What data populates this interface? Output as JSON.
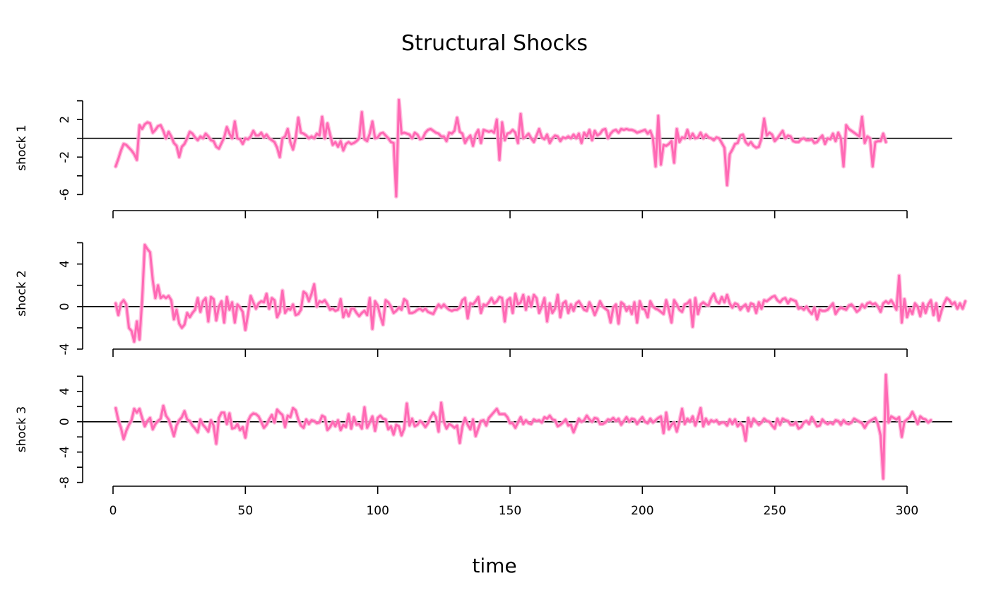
{
  "chart_data": {
    "type": "line",
    "title": "Structural Shocks",
    "xlabel": "time",
    "xlim": [
      0,
      305
    ],
    "x_ticks": [
      0,
      50,
      100,
      150,
      200,
      250,
      300
    ],
    "series_color": "#FF69B4",
    "band_color": "#FFB3DA",
    "panels": [
      {
        "ylabel": "shock 1",
        "ylim": [
          -6.2,
          4.2
        ],
        "y_ticks": [
          "2",
          "-2",
          "-6"
        ],
        "y_tick_values": [
          2,
          -2,
          -6
        ],
        "y_minor_ticks": [
          4,
          0,
          -4
        ],
        "zero_line": 0,
        "values": [
          -3.0,
          -2.2,
          -1.3,
          -0.6,
          -0.7,
          -1.0,
          -1.3,
          -1.7,
          -2.3,
          1.4,
          1.0,
          1.5,
          1.7,
          1.6,
          0.6,
          0.9,
          1.3,
          1.4,
          0.8,
          0.0,
          0.7,
          0.2,
          -0.5,
          -0.8,
          -2.0,
          -0.9,
          -0.6,
          0.0,
          0.7,
          0.5,
          0.1,
          -0.2,
          0.2,
          0.0,
          0.5,
          0.2,
          -0.2,
          -0.3,
          -0.9,
          -1.1,
          -0.5,
          0.1,
          1.2,
          0.5,
          0.0,
          1.8,
          0.0,
          -0.1,
          -0.6,
          0.0,
          -0.1,
          0.2,
          0.8,
          0.3,
          0.3,
          0.6,
          0.1,
          0.4,
          0.0,
          -0.2,
          -0.4,
          -1.0,
          -2.0,
          0.0,
          0.2,
          1.0,
          -0.4,
          -1.2,
          0.0,
          2.2,
          0.6,
          0.5,
          0.3,
          0.0,
          0.2,
          0.0,
          0.5,
          0.3,
          2.3,
          0.0,
          1.6,
          0.4,
          -0.7,
          -0.4,
          -0.9,
          -0.3,
          -1.3,
          -0.6,
          -0.4,
          -0.6,
          -0.5,
          -0.3,
          0.0,
          2.8,
          -0.1,
          -0.3,
          0.5,
          1.8,
          0.0,
          0.1,
          0.5,
          0.6,
          0.3,
          0.0,
          -0.4,
          -0.5,
          -6.2,
          4.1,
          0.5,
          0.6,
          0.5,
          0.4,
          0.0,
          0.6,
          0.4,
          -0.1,
          0.0,
          0.6,
          0.9,
          1.0,
          0.8,
          0.6,
          0.5,
          0.2,
          0.2,
          -0.3,
          0.6,
          0.5,
          0.8,
          2.2,
          0.7,
          0.5,
          -0.5,
          0.0,
          0.3,
          -0.8,
          0.4,
          0.9,
          -0.5,
          0.9,
          0.8,
          0.7,
          0.8,
          0.6,
          2.0,
          -2.3,
          1.7,
          -0.2,
          0.5,
          0.6,
          0.9,
          0.6,
          -0.5,
          2.6,
          0.0,
          0.2,
          0.5,
          0.0,
          -0.4,
          0.3,
          1.0,
          0.1,
          -0.1,
          0.4,
          -0.5,
          0.0,
          0.3,
          0.2,
          -0.3,
          0.1,
          0.0,
          0.2,
          0.0,
          0.4,
          0.0,
          0.5,
          -0.5,
          0.6,
          0.2,
          0.9,
          -0.2,
          0.8,
          0.3,
          0.5,
          0.9,
          1.0,
          0.0,
          0.5,
          0.8,
          0.9,
          0.6,
          1.0,
          0.9,
          1.0,
          0.9,
          0.9,
          0.8,
          0.6,
          0.7,
          0.8,
          0.9,
          0.5,
          0.8,
          0.0,
          -3.0,
          2.4,
          -2.8,
          -0.7,
          -0.8,
          -0.6,
          -0.3,
          -2.6,
          1.0,
          -0.4,
          0.1,
          0.0,
          0.9,
          0.0,
          0.5,
          0.0,
          0.1,
          0.6,
          0.0,
          0.4,
          0.1,
          0.0,
          -0.2,
          0.1,
          0.0,
          -0.5,
          -1.0,
          -5.0,
          -1.7,
          -1.2,
          -0.6,
          -0.5,
          0.3,
          0.4,
          -0.4,
          -0.7,
          -0.4,
          -0.8,
          -1.0,
          -0.9,
          0.0,
          2.1,
          0.3,
          0.6,
          0.4,
          -0.3,
          0.0,
          0.4,
          0.8,
          0.0,
          0.3,
          0.2,
          -0.3,
          -0.4,
          -0.4,
          -0.1,
          0.0,
          -0.2,
          -0.2,
          -0.1,
          -0.5,
          -0.4,
          0.0,
          0.3,
          -0.6,
          0.0,
          -0.1,
          0.5,
          -0.3,
          0.6,
          0.0,
          -3.0,
          1.4,
          1.0,
          0.8,
          0.6,
          0.4,
          0.2,
          2.3,
          -0.5,
          0.2,
          0.0,
          -3.0,
          -0.4,
          -0.3,
          -0.3,
          0.5,
          -0.4
        ]
      },
      {
        "ylabel": "shock 2",
        "ylim": [
          -4,
          6.5
        ],
        "y_ticks": [
          "4",
          "0",
          "-4"
        ],
        "y_tick_values": [
          4,
          0,
          -4
        ],
        "y_minor_ticks": [
          6,
          2,
          -2
        ],
        "zero_line": 0,
        "values": [
          0.3,
          -0.8,
          0.3,
          0.6,
          0.2,
          -2.0,
          -2.3,
          -3.3,
          -1.4,
          -3.1,
          0.6,
          5.8,
          5.4,
          5.1,
          2.5,
          0.8,
          2.0,
          0.8,
          1.0,
          0.8,
          1.0,
          0.6,
          -1.2,
          -0.3,
          -1.6,
          -2.0,
          -1.7,
          -0.6,
          -1.0,
          -0.6,
          -0.3,
          0.8,
          -0.5,
          0.5,
          0.8,
          -1.4,
          0.9,
          0.7,
          -1.3,
          0.0,
          0.5,
          -1.5,
          0.9,
          -0.3,
          0.4,
          -1.5,
          0.2,
          -0.1,
          -0.5,
          -2.2,
          -0.7,
          1.0,
          0.4,
          -0.2,
          0.3,
          0.5,
          0.4,
          1.2,
          -0.2,
          0.8,
          0.6,
          -1.0,
          -0.5,
          1.5,
          -0.6,
          -0.2,
          -0.3,
          0.2,
          -0.8,
          -0.7,
          -0.3,
          1.4,
          1.2,
          0.5,
          1.2,
          2.1,
          0.0,
          0.5,
          0.4,
          0.6,
          0.2,
          -0.3,
          -0.2,
          -0.4,
          -0.3,
          0.7,
          -1.0,
          -0.3,
          -0.9,
          -0.2,
          -0.2,
          -0.6,
          -0.9,
          -0.6,
          -0.4,
          -0.8,
          0.8,
          -2.1,
          0.5,
          0.1,
          -0.9,
          -1.7,
          0.6,
          0.4,
          0.0,
          -0.6,
          -0.4,
          -0.1,
          -0.3,
          0.7,
          0.5,
          -0.6,
          -0.6,
          -0.5,
          -0.3,
          -0.2,
          -0.4,
          -0.2,
          -0.5,
          -0.6,
          -0.7,
          -0.2,
          0.2,
          -0.1,
          0.2,
          -0.1,
          -0.3,
          -0.4,
          -0.3,
          -0.3,
          -0.1,
          0.6,
          0.8,
          -1.1,
          0.3,
          0.2,
          0.5,
          0.9,
          -0.6,
          0.2,
          0.1,
          0.4,
          0.8,
          0.3,
          0.5,
          0.9,
          0.8,
          -1.4,
          0.6,
          0.8,
          -0.6,
          1.2,
          0.2,
          0.4,
          1.1,
          -0.3,
          0.9,
          0.0,
          1.1,
          0.8,
          -0.6,
          0.0,
          0.8,
          -1.4,
          0.3,
          -0.6,
          -0.2,
          1.1,
          -1.0,
          0.3,
          0.5,
          -0.6,
          0.2,
          -0.4,
          0.3,
          0.5,
          0.1,
          -0.3,
          -0.4,
          0.4,
          -0.1,
          -0.8,
          -0.2,
          0.5,
          0.0,
          -0.2,
          -0.4,
          -1.5,
          -0.1,
          0.2,
          -1.6,
          0.4,
          0.2,
          -0.4,
          0.0,
          -0.7,
          0.4,
          -1.5,
          0.5,
          -0.2,
          -0.3,
          -1.0,
          0.5,
          0.0,
          -0.2,
          -0.3,
          -0.5,
          -0.7,
          0.6,
          -0.3,
          -1.5,
          0.6,
          0.2,
          -0.3,
          -0.5,
          0.2,
          0.3,
          0.6,
          -1.9,
          0.8,
          -0.7,
          0.2,
          0.4,
          0.2,
          0.1,
          0.8,
          1.2,
          0.5,
          0.3,
          0.9,
          0.4,
          1.1,
          0.3,
          -0.1,
          0.3,
          0.2,
          -0.3,
          0.0,
          0.2,
          -0.4,
          0.3,
          0.2,
          -0.6,
          0.4,
          -0.2,
          0.6,
          0.5,
          0.7,
          0.9,
          1.0,
          0.6,
          0.4,
          0.7,
          0.8,
          0.3,
          0.7,
          0.6,
          0.5,
          -0.2,
          -0.1,
          -0.3,
          0.0,
          -0.4,
          -0.7,
          -0.1,
          -1.2,
          -0.3,
          -0.4,
          -0.4,
          -0.3,
          0.0,
          0.3,
          -0.7,
          -0.3,
          -0.1,
          -0.2,
          -0.3,
          0.1,
          0.2,
          -0.1,
          -0.5,
          -0.3,
          0.2,
          -0.1,
          0.3,
          0.4,
          0.2,
          0.3,
          0.0,
          -0.5,
          0.3,
          0.5,
          0.3,
          0.6,
          0.2,
          -0.3,
          2.9,
          -1.5,
          0.7,
          -1.0,
          -0.2,
          -0.7,
          0.3,
          0.0,
          -0.9,
          0.3,
          -0.6,
          0.2,
          0.6,
          -0.8,
          0.3,
          -1.3,
          -0.4,
          0.3,
          0.8,
          0.6,
          0.2,
          0.4,
          -0.2,
          0.3,
          -0.2,
          0.5
        ]
      },
      {
        "ylabel": "shock 3",
        "ylim": [
          -8.5,
          6.5
        ],
        "y_ticks": [
          "4",
          "0",
          "-4",
          "-8"
        ],
        "y_tick_values": [
          4,
          0,
          -4,
          -8
        ],
        "y_minor_ticks": [
          6,
          2,
          -2,
          -6
        ],
        "zero_line": 0,
        "values": [
          1.8,
          0.2,
          -0.8,
          -2.3,
          -1.2,
          -0.4,
          0.2,
          1.7,
          1.2,
          1.7,
          0.5,
          -0.6,
          0.1,
          0.5,
          -1.0,
          -0.3,
          0.1,
          0.4,
          2.1,
          0.8,
          0.3,
          -0.7,
          -1.9,
          -0.5,
          0.2,
          0.6,
          1.4,
          0.3,
          0.1,
          -0.5,
          -0.9,
          -1.4,
          0.3,
          -0.4,
          -0.8,
          -1.3,
          0.2,
          -0.5,
          -2.9,
          0.5,
          1.2,
          1.2,
          -0.3,
          1.1,
          -0.9,
          -0.8,
          -0.3,
          -1.1,
          -0.7,
          -2.1,
          0.1,
          0.8,
          1.1,
          1.0,
          0.7,
          0.0,
          -0.8,
          -0.4,
          0.3,
          0.9,
          -0.1,
          1.6,
          1.2,
          0.9,
          -0.7,
          0.8,
          0.6,
          1.8,
          1.5,
          0.3,
          -0.5,
          -0.8,
          0.3,
          -0.3,
          0.2,
          0.1,
          -0.2,
          -0.1,
          0.8,
          0.6,
          -1.1,
          -0.7,
          0.0,
          -0.6,
          0.2,
          -1.1,
          -0.4,
          -0.7,
          1.0,
          -0.9,
          0.6,
          -0.4,
          -0.3,
          -0.9,
          1.9,
          -0.8,
          -0.1,
          0.7,
          -1.2,
          0.5,
          0.8,
          0.4,
          0.3,
          -1.0,
          -0.6,
          -1.7,
          -0.4,
          -0.6,
          -1.8,
          -0.9,
          2.4,
          -0.5,
          0.4,
          -0.6,
          -0.4,
          0.1,
          -0.2,
          -0.7,
          -0.2,
          0.6,
          1.2,
          0.6,
          -1.3,
          2.5,
          0.0,
          -0.9,
          -0.3,
          -0.5,
          -0.8,
          -0.5,
          -2.8,
          -0.6,
          0.5,
          -0.4,
          -1.0,
          0.3,
          -1.9,
          -0.9,
          0.1,
          0.2,
          -0.5,
          0.5,
          0.9,
          1.3,
          1.7,
          1.0,
          1.0,
          1.0,
          0.6,
          -0.2,
          -0.2,
          -0.8,
          -0.1,
          0.6,
          -0.3,
          0.2,
          -0.2,
          -0.3,
          0.3,
          0.1,
          0.2,
          -0.1,
          0.6,
          0.4,
          0.8,
          0.3,
          0.2,
          -0.6,
          -0.4,
          -0.1,
          0.3,
          -0.5,
          -0.4,
          -1.4,
          -0.5,
          0.4,
          0.0,
          0.2,
          0.8,
          0.3,
          0.0,
          0.5,
          0.4,
          -0.3,
          -0.3,
          -0.1,
          0.3,
          0.2,
          0.5,
          0.1,
          0.4,
          -0.4,
          0.1,
          0.6,
          0.0,
          0.4,
          0.3,
          -0.3,
          0.2,
          0.6,
          0.0,
          -0.2,
          0.4,
          -0.1,
          0.2,
          0.5,
          0.7,
          -1.5,
          1.2,
          -1.0,
          -0.4,
          -0.1,
          -1.3,
          0.0,
          1.7,
          -0.3,
          0.4,
          0.0,
          0.7,
          -0.5,
          0.5,
          1.8,
          -0.6,
          0.4,
          -0.3,
          0.2,
          0.0,
          0.2,
          -0.3,
          -0.1,
          -0.1,
          -0.5,
          0.3,
          -0.3,
          0.3,
          -0.6,
          -0.2,
          -0.6,
          -2.5,
          0.5,
          -0.6,
          0.4,
          0.0,
          -0.4,
          -0.1,
          0.4,
          0.1,
          0.0,
          -0.5,
          -0.9,
          0.4,
          -0.4,
          0.4,
          0.2,
          0.1,
          -0.4,
          -0.4,
          -0.1,
          -0.9,
          -0.7,
          -0.1,
          0.1,
          -0.3,
          0.6,
          0.0,
          -0.6,
          -0.5,
          0.3,
          -0.1,
          -0.3,
          -0.1,
          -0.3,
          0.2,
          0.1,
          -0.4,
          0.2,
          -0.2,
          -0.3,
          -0.1,
          0.4,
          0.2,
          0.0,
          -0.2,
          -0.8,
          -0.2,
          0.1,
          0.3,
          0.5,
          -0.3,
          -1.8,
          -7.5,
          6.2,
          -0.1,
          0.7,
          0.5,
          0.3,
          0.6,
          -2.0,
          0.0,
          0.3,
          0.6,
          1.3,
          0.6,
          -0.3,
          0.7,
          0.4,
          0.3,
          -0.1,
          0.2
        ]
      }
    ]
  }
}
